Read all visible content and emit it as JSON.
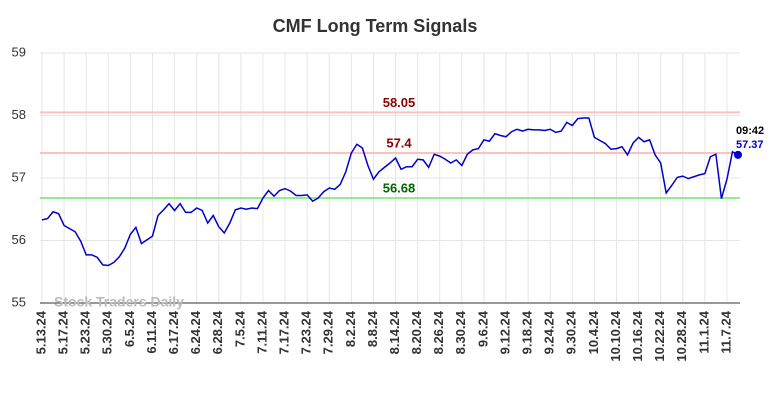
{
  "chart_data": {
    "type": "line",
    "title": "CMF Long Term Signals",
    "watermark": "Stock Traders Daily",
    "categories": [
      "5.13.24",
      null,
      null,
      null,
      "5.17.24",
      null,
      null,
      null,
      "5.23.24",
      null,
      null,
      null,
      "5.30.24",
      null,
      null,
      null,
      "6.5.24",
      null,
      null,
      null,
      "6.11.24",
      null,
      null,
      null,
      "6.17.24",
      null,
      null,
      null,
      "6.24.24",
      null,
      null,
      null,
      "6.28.24",
      null,
      null,
      null,
      "7.5.24",
      null,
      null,
      null,
      "7.11.24",
      null,
      null,
      null,
      "7.17.24",
      null,
      null,
      null,
      "7.23.24",
      null,
      null,
      null,
      "7.29.24",
      null,
      null,
      null,
      "8.2.24",
      null,
      null,
      null,
      "8.8.24",
      null,
      null,
      null,
      "8.14.24",
      null,
      null,
      null,
      "8.20.24",
      null,
      null,
      null,
      "8.26.24",
      null,
      null,
      null,
      "8.30.24",
      null,
      null,
      null,
      "9.6.24",
      null,
      null,
      null,
      "9.12.24",
      null,
      null,
      null,
      "9.18.24",
      null,
      null,
      null,
      "9.24.24",
      null,
      null,
      null,
      "9.30.24",
      null,
      null,
      null,
      "10.4.24",
      null,
      null,
      null,
      "10.10.24",
      null,
      null,
      null,
      "10.16.24",
      null,
      null,
      null,
      "10.22.24",
      null,
      null,
      null,
      "10.28.24",
      null,
      null,
      null,
      "11.1.24",
      null,
      null,
      null,
      "11.7.24",
      null,
      null
    ],
    "series": [
      {
        "color": "#0000cc",
        "values": [
          56.33,
          56.35,
          56.46,
          56.43,
          56.24,
          56.19,
          56.14,
          55.99,
          55.77,
          55.77,
          55.73,
          55.61,
          55.6,
          55.65,
          55.74,
          55.88,
          56.1,
          56.21,
          55.95,
          56.01,
          56.07,
          56.4,
          56.49,
          56.59,
          56.48,
          56.59,
          56.45,
          56.45,
          56.52,
          56.48,
          56.28,
          56.4,
          56.22,
          56.12,
          56.28,
          56.49,
          56.52,
          56.5,
          56.52,
          56.51,
          56.68,
          56.8,
          56.71,
          56.8,
          56.83,
          56.79,
          56.72,
          56.72,
          56.73,
          56.63,
          56.68,
          56.78,
          56.84,
          56.82,
          56.9,
          57.1,
          57.4,
          57.54,
          57.48,
          57.2,
          56.98,
          57.1,
          57.17,
          57.24,
          57.32,
          57.14,
          57.18,
          57.18,
          57.3,
          57.29,
          57.17,
          57.38,
          57.35,
          57.3,
          57.24,
          57.29,
          57.2,
          57.38,
          57.45,
          57.47,
          57.61,
          57.59,
          57.71,
          57.68,
          57.66,
          57.74,
          57.78,
          57.75,
          57.78,
          57.77,
          57.77,
          57.76,
          57.78,
          57.73,
          57.75,
          57.89,
          57.84,
          57.95,
          57.96,
          57.96,
          57.65,
          57.6,
          57.55,
          57.46,
          57.47,
          57.5,
          57.37,
          57.56,
          57.65,
          57.58,
          57.61,
          57.37,
          57.24,
          56.76,
          56.88,
          57.01,
          57.03,
          56.99,
          57.02,
          57.05,
          57.07,
          57.34,
          57.38,
          56.67,
          56.98,
          57.42,
          57.37
        ]
      }
    ],
    "last_time": "09:42",
    "hlines": [
      {
        "value": 58.05,
        "color": "#ffc0c0",
        "label_color": "#8b0000"
      },
      {
        "value": 57.4,
        "color": "#ffc0c0",
        "label_color": "#8b0000"
      },
      {
        "value": 56.68,
        "color": "#90ee90",
        "label_color": "#006400"
      }
    ],
    "ylim": [
      55,
      59
    ],
    "yticks": [
      55,
      56,
      57,
      58,
      59
    ],
    "grid": true
  }
}
